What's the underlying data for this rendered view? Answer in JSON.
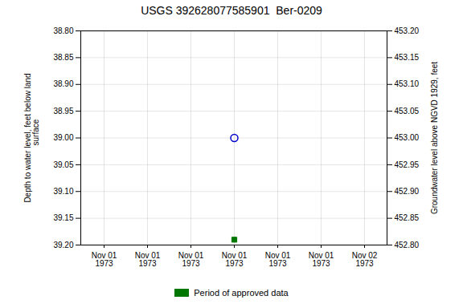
{
  "chart_data": {
    "type": "scatter",
    "title": "USGS 392628077585901  Ber-0209",
    "categories": [
      "Nov 01\n1973",
      "Nov 01\n1973",
      "Nov 01\n1973",
      "Nov 01\n1973",
      "Nov 01\n1973",
      "Nov 01\n1973",
      "Nov 02\n1973"
    ],
    "series": [
      {
        "color": "#0000cc",
        "marker": "circle",
        "values": [
          null,
          null,
          null,
          39.0,
          null,
          null,
          null
        ]
      },
      {
        "name": "Period of approved data",
        "color": "#007700",
        "marker": "square",
        "values": [
          null,
          null,
          null,
          39.19,
          null,
          null,
          null
        ]
      }
    ],
    "y_label": "Depth to water level, feet below land\n     surface",
    "y2_label": "Groundwater level above NGVD 1929, feet",
    "ylim": [
      39.2,
      38.8
    ],
    "yticks": [
      {
        "value": 38.8,
        "label": "38.80"
      },
      38.85,
      {
        "value": 38.9,
        "label": "38.90"
      },
      38.95,
      {
        "value": 39.0,
        "label": "39.00"
      },
      39.05,
      {
        "value": 39.1,
        "label": "39.10"
      },
      39.15,
      {
        "value": 39.2,
        "label": "39.20"
      }
    ],
    "y2lim": [
      452.8,
      453.2
    ],
    "y2ticks": [
      {
        "value": 453.2,
        "label": "453.20"
      },
      453.15,
      {
        "value": 453.1,
        "label": "453.10"
      },
      453.05,
      {
        "value": 453.0,
        "label": "453.00"
      },
      452.95,
      {
        "value": 452.9,
        "label": "452.90"
      },
      452.85,
      {
        "value": 452.8,
        "label": "452.80"
      }
    ],
    "grid": true,
    "legend": "bottom"
  }
}
